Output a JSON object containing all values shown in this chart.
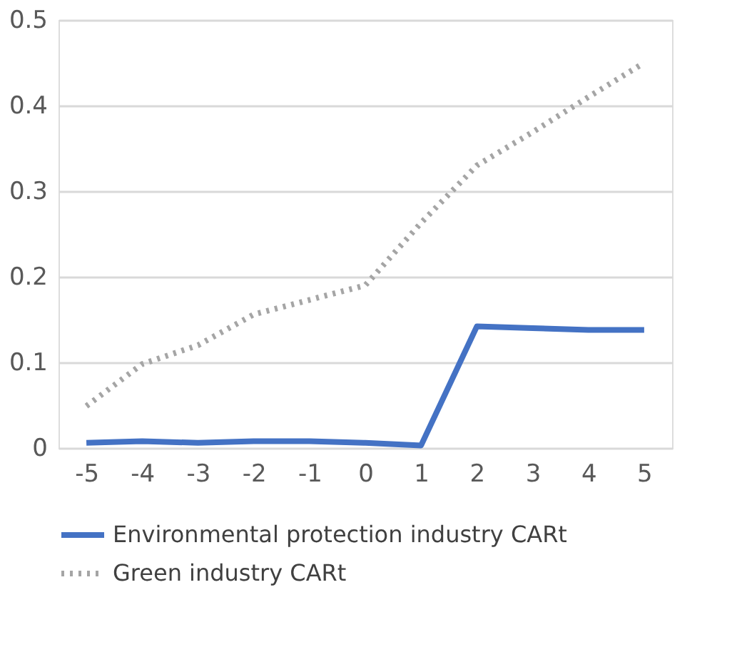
{
  "chart_data": {
    "type": "line",
    "categories": [
      "-5",
      "-4",
      "-3",
      "-2",
      "-1",
      "0",
      "1",
      "2",
      "3",
      "4",
      "5"
    ],
    "series": [
      {
        "name": "Environmental protection industry CARt",
        "color": "#4472c4",
        "line_style": "solid",
        "values": [
          0.006,
          0.008,
          0.006,
          0.008,
          0.008,
          0.006,
          0.003,
          0.142,
          0.14,
          0.138,
          0.138
        ]
      },
      {
        "name": "Green industry CARt",
        "color": "#a5a5a5",
        "line_style": "dotted",
        "values": [
          0.049,
          0.098,
          0.12,
          0.156,
          0.173,
          0.19,
          0.263,
          0.33,
          0.369,
          0.41,
          0.45
        ]
      }
    ],
    "ylim": [
      0,
      0.5
    ],
    "yticks": [
      0,
      0.1,
      0.2,
      0.3,
      0.4,
      0.5
    ],
    "grid": "y",
    "legend": "bottom",
    "marker": "none"
  }
}
